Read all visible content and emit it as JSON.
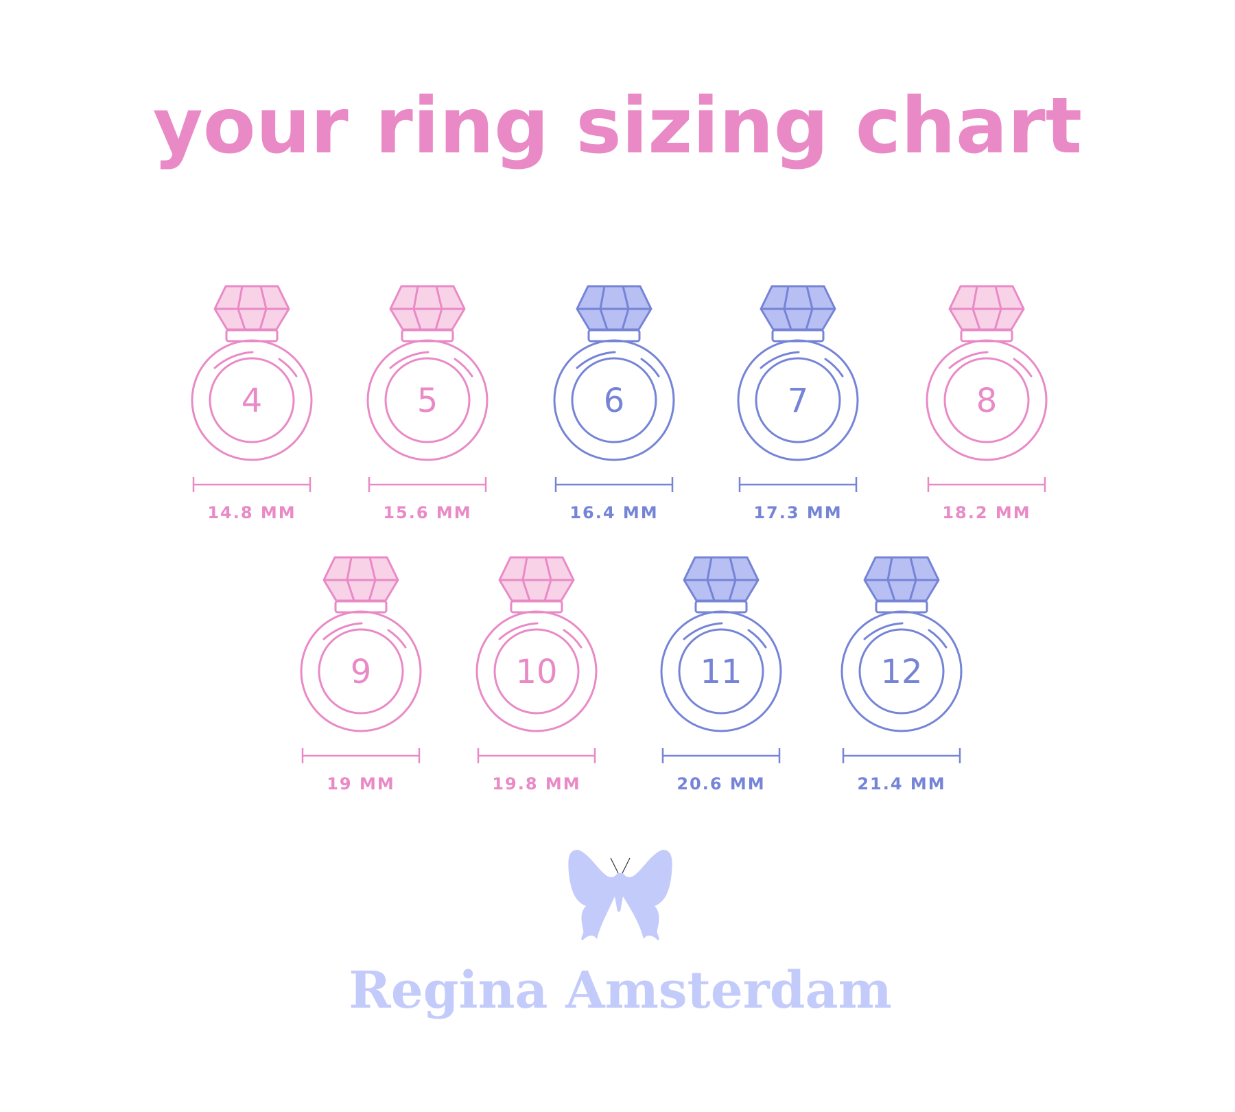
{
  "title": "your ring sizing chart",
  "colors": {
    "pink": "#e98ac6",
    "pink_fill": "#f8d3e8",
    "blue": "#7584d6",
    "blue_fill": "#b7bff3",
    "brand": "#c3cbfb"
  },
  "rows": [
    [
      {
        "size": "4",
        "measure": "14.8 MM",
        "color": "pink"
      },
      {
        "size": "5",
        "measure": "15.6 MM",
        "color": "pink"
      },
      {
        "size": "6",
        "measure": "16.4 MM",
        "color": "blue"
      },
      {
        "size": "7",
        "measure": "17.3 MM",
        "color": "blue"
      },
      {
        "size": "8",
        "measure": "18.2 MM",
        "color": "pink"
      }
    ],
    [
      {
        "size": "9",
        "measure": "19 MM",
        "color": "pink"
      },
      {
        "size": "10",
        "measure": "19.8 MM",
        "color": "pink"
      },
      {
        "size": "11",
        "measure": "20.6 MM",
        "color": "blue"
      },
      {
        "size": "12",
        "measure": "21.4 MM",
        "color": "blue"
      }
    ]
  ],
  "brand": {
    "logo_icon": "butterfly-icon",
    "name": "Regina Amsterdam"
  }
}
